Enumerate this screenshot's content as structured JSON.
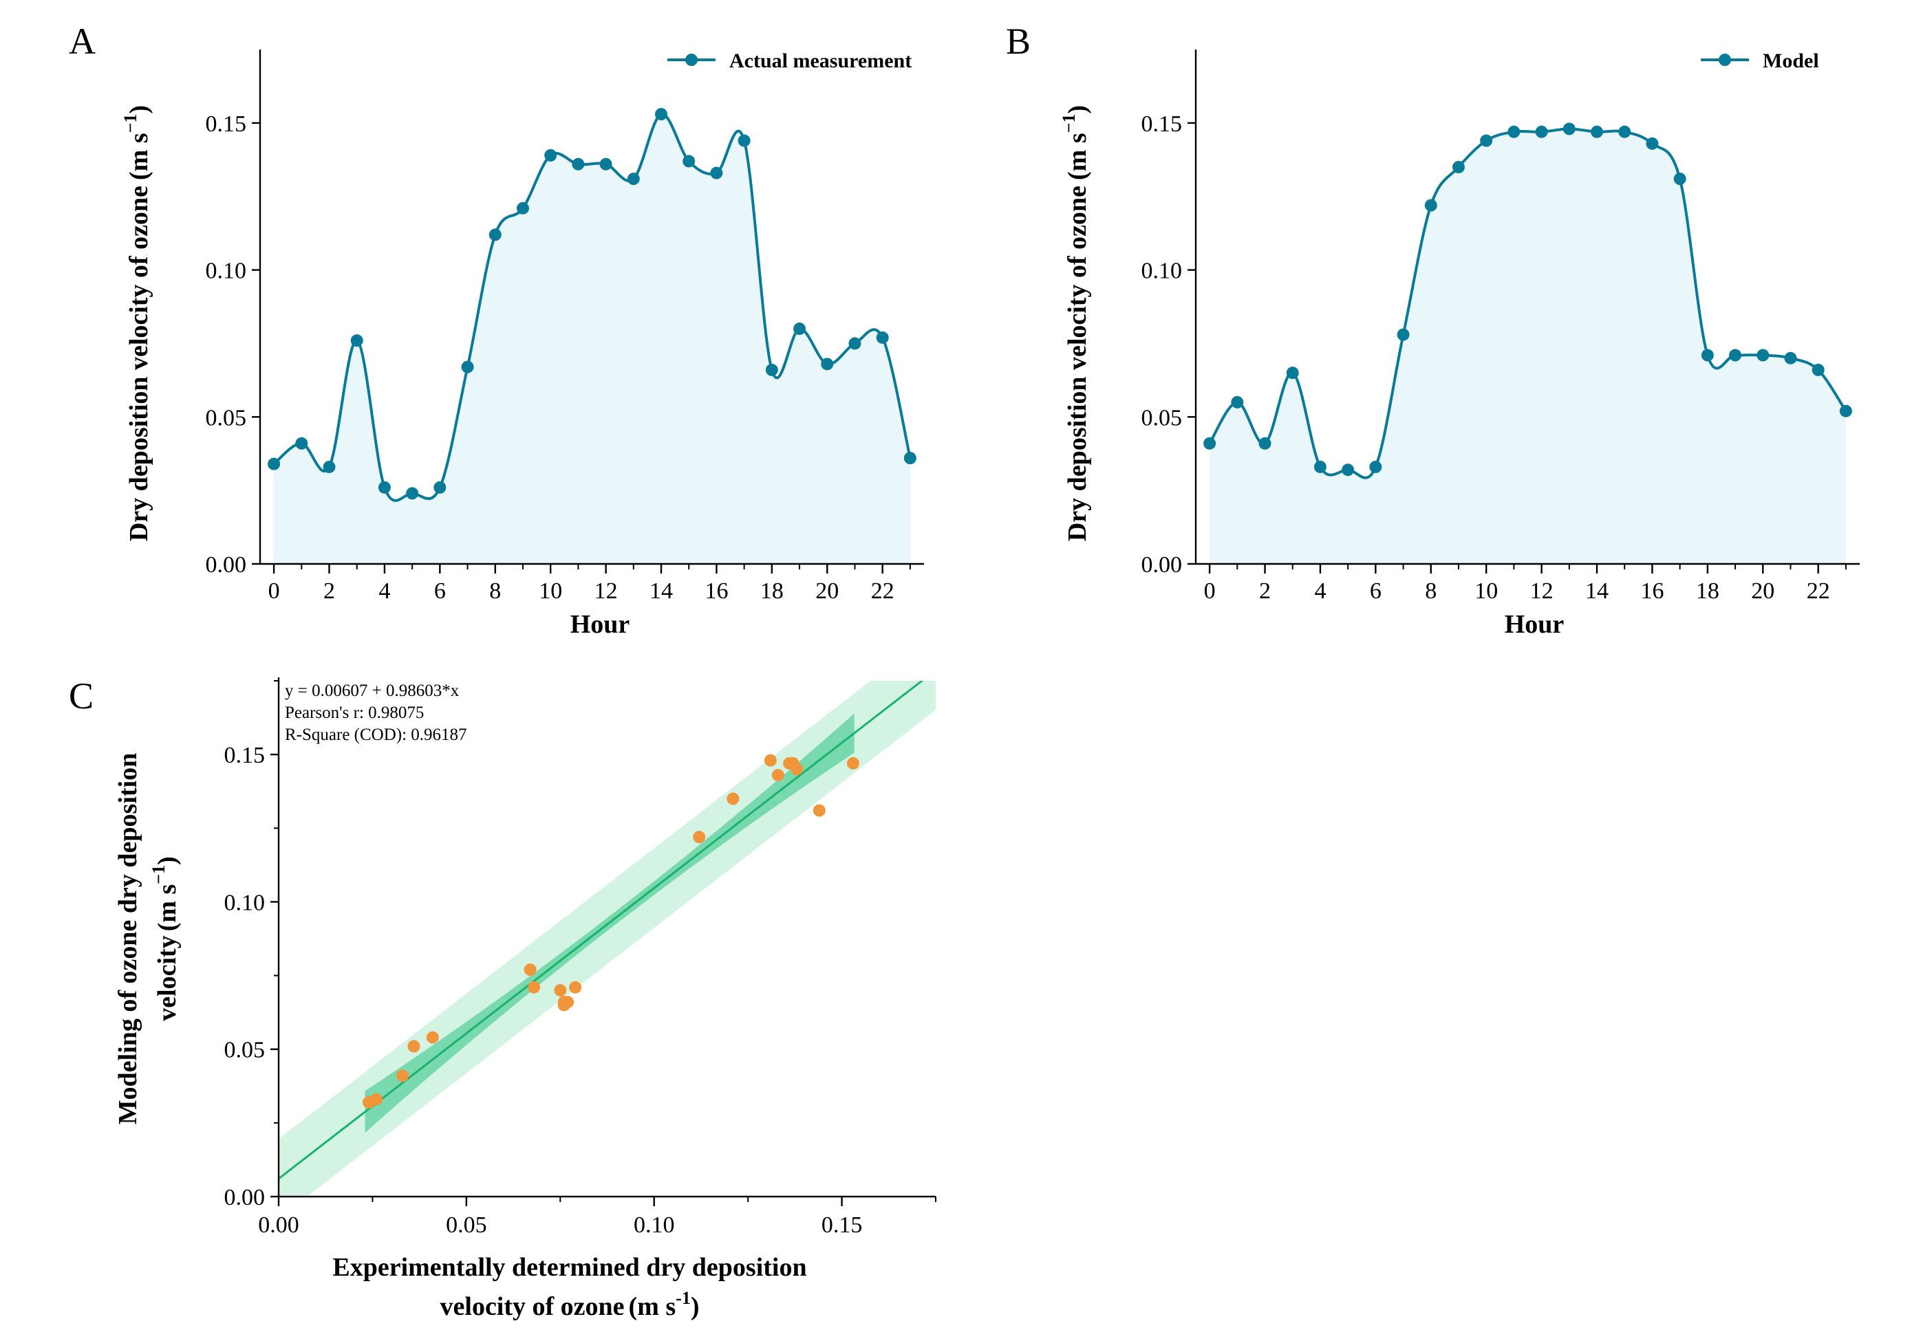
{
  "colors": {
    "line": "#0a7a99",
    "area": "#e9f6fa",
    "scatter": "#f0953a",
    "fit": "#17b36b",
    "conf_band": "#3bc48a",
    "pred_band": "#c6f0da"
  },
  "chart_data": [
    {
      "panel": "A",
      "type": "line",
      "series_name": "Actual measurement",
      "xlabel": "Hour",
      "ylabel_main": "Dry deposition velocity of ozone",
      "ylabel_unit_open": "(m s",
      "ylabel_unit_sup": "−1",
      "ylabel_unit_close": ")",
      "xlim": [
        -0.5,
        23.5
      ],
      "ylim": [
        0,
        0.175
      ],
      "xticks": [
        0,
        2,
        4,
        6,
        8,
        10,
        12,
        14,
        16,
        18,
        20,
        22
      ],
      "yticks": [
        "0.00",
        "0.05",
        "0.10",
        "0.15"
      ],
      "legend_position": "top-right",
      "x": [
        0,
        1,
        2,
        3,
        4,
        5,
        6,
        7,
        8,
        9,
        10,
        11,
        12,
        13,
        14,
        15,
        16,
        17,
        18,
        19,
        20,
        21,
        22,
        23
      ],
      "y": [
        0.034,
        0.041,
        0.033,
        0.076,
        0.026,
        0.024,
        0.026,
        0.067,
        0.112,
        0.121,
        0.139,
        0.136,
        0.136,
        0.131,
        0.153,
        0.137,
        0.133,
        0.144,
        0.066,
        0.08,
        0.068,
        0.075,
        0.077,
        0.036
      ]
    },
    {
      "panel": "B",
      "type": "line",
      "series_name": "Model",
      "xlabel": "Hour",
      "ylabel_main": "Dry deposition velocity of ozone",
      "ylabel_unit_open": "(m s",
      "ylabel_unit_sup": "−1",
      "ylabel_unit_close": ")",
      "xlim": [
        -0.5,
        23.5
      ],
      "ylim": [
        0,
        0.175
      ],
      "xticks": [
        0,
        2,
        4,
        6,
        8,
        10,
        12,
        14,
        16,
        18,
        20,
        22
      ],
      "yticks": [
        "0.00",
        "0.05",
        "0.10",
        "0.15"
      ],
      "legend_position": "top-right",
      "x": [
        0,
        1,
        2,
        3,
        4,
        5,
        6,
        7,
        8,
        9,
        10,
        11,
        12,
        13,
        14,
        15,
        16,
        17,
        18,
        19,
        20,
        21,
        22,
        23
      ],
      "y": [
        0.041,
        0.055,
        0.041,
        0.065,
        0.033,
        0.032,
        0.033,
        0.078,
        0.122,
        0.135,
        0.144,
        0.147,
        0.147,
        0.148,
        0.147,
        0.147,
        0.143,
        0.131,
        0.071,
        0.071,
        0.071,
        0.07,
        0.066,
        0.052
      ]
    },
    {
      "panel": "C",
      "type": "scatter",
      "xlabel_line1": "Experimentally determined dry deposition",
      "xlabel_line2_main": "velocity of ozone",
      "xlabel_unit_open": "(m s",
      "xlabel_unit_sup": "-1",
      "xlabel_unit_close": ")",
      "ylabel_line1": "Modeling of ozone dry deposition",
      "ylabel_line2_main": "velocity",
      "ylabel_unit_open": "(m s",
      "ylabel_unit_sup": "−1",
      "ylabel_unit_close": ")",
      "xlim": [
        0,
        0.175
      ],
      "ylim": [
        0,
        0.175
      ],
      "xticks": [
        "0.00",
        "0.05",
        "0.10",
        "0.15"
      ],
      "yticks": [
        "0.00",
        "0.05",
        "0.10",
        "0.15"
      ],
      "annotations": [
        "y = 0.00607 + 0.98603*x",
        "Pearson's r: 0.98075",
        "R-Square (COD): 0.96187"
      ],
      "fit": {
        "intercept": 0.00607,
        "slope": 0.98603
      },
      "points": [
        [
          0.024,
          0.032
        ],
        [
          0.026,
          0.033
        ],
        [
          0.033,
          0.041
        ],
        [
          0.036,
          0.051
        ],
        [
          0.041,
          0.054
        ],
        [
          0.067,
          0.077
        ],
        [
          0.068,
          0.071
        ],
        [
          0.075,
          0.07
        ],
        [
          0.076,
          0.066
        ],
        [
          0.076,
          0.065
        ],
        [
          0.077,
          0.066
        ],
        [
          0.079,
          0.071
        ],
        [
          0.112,
          0.122
        ],
        [
          0.121,
          0.135
        ],
        [
          0.131,
          0.148
        ],
        [
          0.133,
          0.143
        ],
        [
          0.136,
          0.147
        ],
        [
          0.137,
          0.147
        ],
        [
          0.138,
          0.145
        ],
        [
          0.144,
          0.131
        ],
        [
          0.153,
          0.147
        ]
      ]
    }
  ]
}
